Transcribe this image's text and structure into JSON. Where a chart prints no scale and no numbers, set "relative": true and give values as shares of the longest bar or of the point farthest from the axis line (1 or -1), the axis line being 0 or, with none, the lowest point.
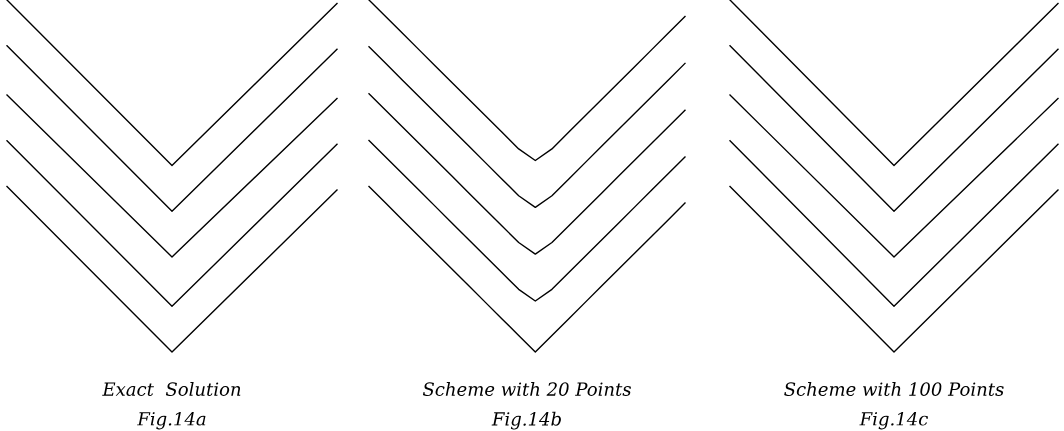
{
  "chart_data": [
    {
      "type": "line",
      "relative": true,
      "categories": [
        null,
        null,
        null
      ],
      "series": [
        {
          "color": "#000000",
          "values": [
            1.0,
            0.53,
            0.99
          ]
        },
        {
          "color": "#000000",
          "values": [
            0.87,
            0.4,
            0.86
          ]
        },
        {
          "color": "#000000",
          "values": [
            0.73,
            0.27,
            0.72
          ]
        },
        {
          "color": "#000000",
          "values": [
            0.6,
            0.13,
            0.59
          ]
        },
        {
          "color": "#000000",
          "values": [
            0.47,
            0.0,
            0.46
          ]
        }
      ],
      "annotations": [
        "Exact  Solution",
        "Fig.14a"
      ]
    },
    {
      "type": "line",
      "relative": true,
      "categories": [
        null,
        null,
        null,
        null,
        null,
        null,
        null,
        null,
        null,
        null,
        null,
        null,
        null,
        null,
        null,
        null,
        null,
        null,
        null,
        null
      ],
      "series": [
        {
          "color": "#000000",
          "values": [
            1.0,
            0.953,
            0.906,
            0.859,
            0.812,
            0.765,
            0.718,
            0.671,
            0.624,
            0.577,
            0.544,
            0.577,
            0.624,
            0.671,
            0.718,
            0.765,
            0.812,
            0.859,
            0.906,
            0.953
          ]
        },
        {
          "color": "#000000",
          "values": [
            0.867,
            0.82,
            0.773,
            0.726,
            0.679,
            0.632,
            0.585,
            0.538,
            0.491,
            0.444,
            0.411,
            0.444,
            0.491,
            0.538,
            0.585,
            0.632,
            0.679,
            0.726,
            0.773,
            0.82
          ]
        },
        {
          "color": "#000000",
          "values": [
            0.734,
            0.687,
            0.64,
            0.593,
            0.546,
            0.499,
            0.452,
            0.405,
            0.358,
            0.311,
            0.278,
            0.311,
            0.358,
            0.405,
            0.452,
            0.499,
            0.546,
            0.593,
            0.64,
            0.687
          ]
        },
        {
          "color": "#000000",
          "values": [
            0.601,
            0.554,
            0.507,
            0.46,
            0.413,
            0.366,
            0.319,
            0.272,
            0.225,
            0.178,
            0.145,
            0.178,
            0.225,
            0.272,
            0.319,
            0.366,
            0.413,
            0.46,
            0.507,
            0.554
          ]
        },
        {
          "color": "#000000",
          "values": [
            0.47,
            0.423,
            0.376,
            0.329,
            0.282,
            0.235,
            0.188,
            0.141,
            0.094,
            0.047,
            0.0,
            0.047,
            0.094,
            0.141,
            0.188,
            0.235,
            0.282,
            0.329,
            0.376,
            0.423
          ]
        }
      ],
      "annotations": [
        "Scheme with 20 Points",
        "Fig.14b"
      ]
    },
    {
      "type": "line",
      "relative": true,
      "categories": [
        null,
        null,
        null
      ],
      "series": [
        {
          "color": "#000000",
          "values": [
            1.0,
            0.53,
            0.99
          ]
        },
        {
          "color": "#000000",
          "values": [
            0.87,
            0.4,
            0.86
          ]
        },
        {
          "color": "#000000",
          "values": [
            0.73,
            0.27,
            0.72
          ]
        },
        {
          "color": "#000000",
          "values": [
            0.6,
            0.13,
            0.59
          ]
        },
        {
          "color": "#000000",
          "values": [
            0.47,
            0.0,
            0.46
          ]
        }
      ],
      "annotations": [
        "Scheme with 100 Points",
        "Fig.14c"
      ]
    }
  ]
}
